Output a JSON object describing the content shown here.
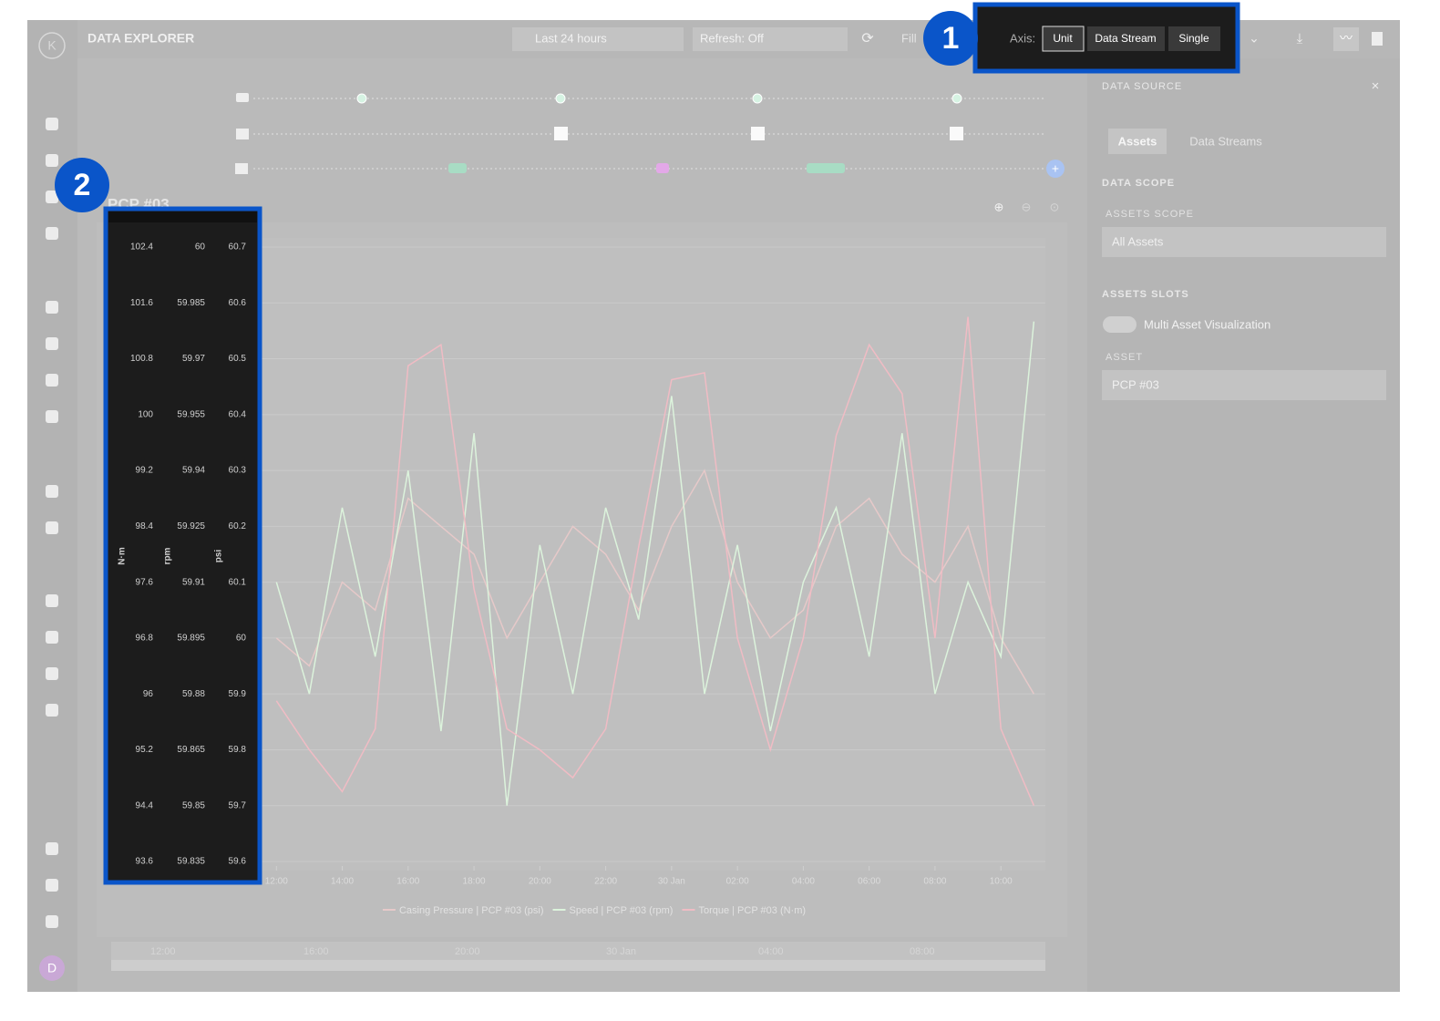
{
  "header": {
    "title": "DATA EXPLORER",
    "time_range": "Last 24 hours",
    "refresh": "Refresh: Off",
    "fill": "Fill",
    "axis_label": "Axis:",
    "axis_options": [
      "Unit",
      "Data Stream",
      "Single"
    ]
  },
  "callouts": [
    "1",
    "2"
  ],
  "sidebar": {
    "logo": "K",
    "avatar": "D"
  },
  "data_source": {
    "title": "DATA SOURCE",
    "tabs": [
      "Assets",
      "Data Streams"
    ],
    "data_scope": "DATA SCOPE",
    "assets_scope_label": "ASSETS SCOPE",
    "assets_scope_value": "All Assets",
    "assets_slots": "ASSETS SLOTS",
    "multi_asset": "Multi Asset Visualization",
    "asset_label": "ASSET",
    "asset_value": "PCP #03"
  },
  "navigator": {
    "labels": [
      "12:00",
      "16:00",
      "20:00",
      "30 Jan",
      "04:00",
      "08:00"
    ]
  },
  "chart_data": {
    "type": "line",
    "title": "PCP #03",
    "ylabel": "N·m",
    "y2label": "rpm",
    "y3label": "psi",
    "x": [
      12,
      13,
      14,
      15,
      16,
      17,
      18,
      19,
      20,
      21,
      22,
      23,
      24,
      25,
      26,
      27,
      28,
      29,
      30,
      31,
      32,
      33,
      34,
      35
    ],
    "xlim": [
      11.55,
      35.35
    ],
    "xticks": [
      {
        "value": 12,
        "label": "12:00"
      },
      {
        "value": 14,
        "label": "14:00"
      },
      {
        "value": 16,
        "label": "16:00"
      },
      {
        "value": 18,
        "label": "18:00"
      },
      {
        "value": 20,
        "label": "20:00"
      },
      {
        "value": 22,
        "label": "22:00"
      },
      {
        "value": 24,
        "label": "30 Jan"
      },
      {
        "value": 26,
        "label": "02:00"
      },
      {
        "value": 28,
        "label": "04:00"
      },
      {
        "value": 30,
        "label": "06:00"
      },
      {
        "value": 32,
        "label": "08:00"
      },
      {
        "value": 34,
        "label": "10:00"
      }
    ],
    "ylim": [
      93.6,
      102.4
    ],
    "yticks": [
      102.4,
      101.6,
      100.8,
      100,
      99.2,
      98.4,
      97.6,
      96.8,
      96,
      95.2,
      94.4,
      93.6
    ],
    "y2lim": [
      59.835,
      60
    ],
    "y2ticks": [
      60,
      59.985,
      59.97,
      59.955,
      59.94,
      59.925,
      59.91,
      59.895,
      59.88,
      59.865,
      59.85,
      59.835
    ],
    "y3lim": [
      59.6,
      60.7
    ],
    "y3ticks": [
      60.7,
      60.6,
      60.5,
      60.4,
      60.3,
      60.2,
      60.1,
      60,
      59.9,
      59.8,
      59.7,
      59.6
    ],
    "grid": true,
    "series": [
      {
        "name": "Casing Pressure | PCP #03 (psi)",
        "color": "#e6c9c9",
        "axis": "y3",
        "values": [
          60.0,
          59.95,
          60.1,
          60.05,
          60.25,
          60.2,
          60.15,
          60.0,
          60.1,
          60.2,
          60.15,
          60.05,
          60.2,
          60.3,
          60.1,
          60.0,
          60.05,
          60.2,
          60.25,
          60.15,
          60.1,
          60.2,
          60.0,
          59.9
        ]
      },
      {
        "name": "Speed | PCP #03 (rpm)",
        "color": "#dcf3dc",
        "axis": "y2",
        "values": [
          59.91,
          59.88,
          59.93,
          59.89,
          59.94,
          59.87,
          59.95,
          59.85,
          59.92,
          59.88,
          59.93,
          59.9,
          59.96,
          59.88,
          59.92,
          59.87,
          59.91,
          59.93,
          59.89,
          59.95,
          59.88,
          59.91,
          59.89,
          59.98
        ]
      },
      {
        "name": "Torque | PCP #03 (N·m)",
        "color": "#f0bcc4",
        "axis": "y",
        "values": [
          95.9,
          95.2,
          94.6,
          95.5,
          100.7,
          101.0,
          97.5,
          95.5,
          95.2,
          94.8,
          95.5,
          98.1,
          100.5,
          100.6,
          96.8,
          95.2,
          96.8,
          99.7,
          101.0,
          100.3,
          96.8,
          101.4,
          95.5,
          94.4
        ]
      }
    ]
  }
}
